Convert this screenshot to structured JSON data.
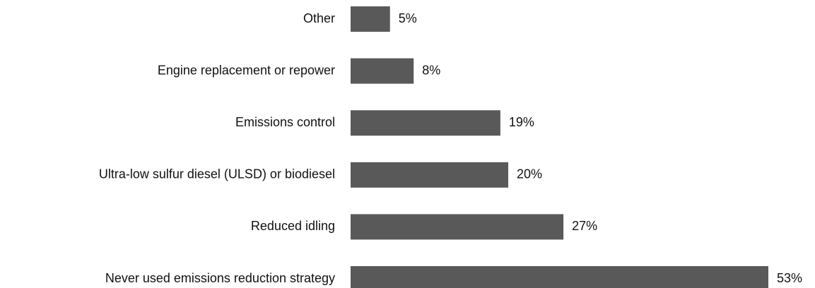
{
  "chart_data": {
    "type": "bar",
    "orientation": "horizontal",
    "categories": [
      "Other",
      "Engine replacement or repower",
      "Emissions control",
      "Ultra-low sulfur diesel (ULSD) or biodiesel",
      "Reduced idling",
      "Never used emissions reduction strategy"
    ],
    "values": [
      5,
      8,
      19,
      20,
      27,
      53
    ],
    "value_labels": [
      "5%",
      "8%",
      "19%",
      "20%",
      "27%",
      "53%"
    ],
    "color": "#595959"
  }
}
